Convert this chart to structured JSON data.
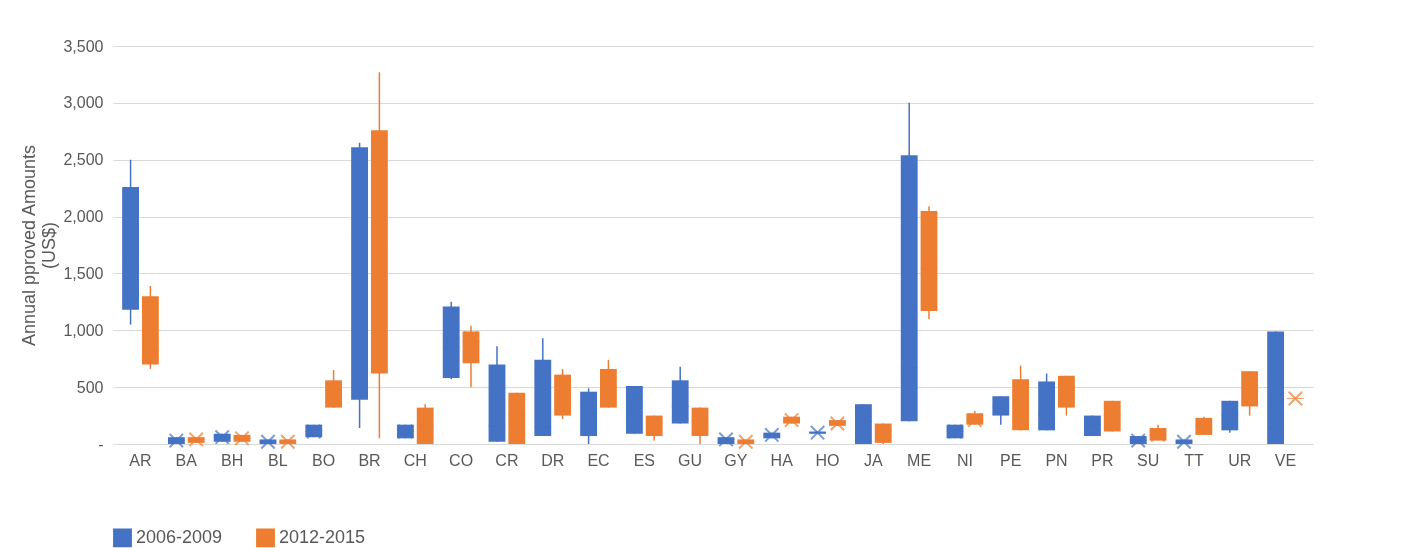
{
  "chart_data": {
    "type": "box",
    "ylabel": "Annual pproved Amounts\n(US$)",
    "categories": [
      "AR",
      "BA",
      "BH",
      "BL",
      "BO",
      "BR",
      "CH",
      "CO",
      "CR",
      "DR",
      "EC",
      "ES",
      "GU",
      "GY",
      "HA",
      "HO",
      "JA",
      "ME",
      "NI",
      "PE",
      "PN",
      "PR",
      "SU",
      "TT",
      "UR",
      "VE"
    ],
    "ylim": [
      0,
      3500
    ],
    "yticks": [
      {
        "value": 0,
        "label": "-"
      },
      500,
      {
        "value": 1000,
        "label": "1,000"
      },
      {
        "value": 1500,
        "label": "1,500"
      },
      {
        "value": 2000,
        "label": "2,000"
      },
      {
        "value": 2500,
        "label": "2,500"
      },
      {
        "value": 3000,
        "label": "3,000"
      },
      {
        "value": 3500,
        "label": "3,500"
      }
    ],
    "grid": "y",
    "legend": "bottom",
    "marker": "cross",
    "series": [
      {
        "name": "2006-2009",
        "color": "#4472c4",
        "boxes": [
          {
            "low": 1050,
            "q1": 1180,
            "median": 1630,
            "q3": 2260,
            "high": 2500,
            "mean": 1680
          },
          {
            "low": 0,
            "q1": 0,
            "median": 30,
            "q3": 60,
            "high": 60,
            "mean": 30
          },
          {
            "low": 20,
            "q1": 20,
            "median": 60,
            "q3": 90,
            "high": 90,
            "mean": 60
          },
          {
            "low": 0,
            "q1": 0,
            "median": 20,
            "q3": 40,
            "high": 40,
            "mean": 20
          },
          {
            "low": 60,
            "q1": 60,
            "median": 110,
            "q3": 170,
            "high": 170,
            "mean": 110
          },
          {
            "low": 140,
            "q1": 390,
            "median": 1830,
            "q3": 2610,
            "high": 2650,
            "mean": 1600
          },
          {
            "low": 50,
            "q1": 50,
            "median": 110,
            "q3": 170,
            "high": 170,
            "mean": 110
          },
          {
            "low": 570,
            "q1": 580,
            "median": 850,
            "q3": 1210,
            "high": 1250,
            "mean": 870
          },
          {
            "low": 20,
            "q1": 20,
            "median": 160,
            "q3": 700,
            "high": 860,
            "mean": 300
          },
          {
            "low": 70,
            "q1": 70,
            "median": 150,
            "q3": 740,
            "high": 930,
            "mean": 320
          },
          {
            "low": 0,
            "q1": 70,
            "median": 340,
            "q3": 460,
            "high": 490,
            "mean": 340
          },
          {
            "low": 90,
            "q1": 90,
            "median": 320,
            "q3": 510,
            "high": 510,
            "mean": 320
          },
          {
            "low": 180,
            "q1": 180,
            "median": 330,
            "q3": 560,
            "high": 680,
            "mean": 340
          },
          {
            "low": 0,
            "q1": 0,
            "median": 40,
            "q3": 60,
            "high": 60,
            "mean": 40
          },
          {
            "low": 50,
            "q1": 50,
            "median": 80,
            "q3": 100,
            "high": 100,
            "mean": 80
          },
          {
            "low": 90,
            "q1": 90,
            "median": 100,
            "q3": 110,
            "high": 110,
            "mean": 100
          },
          {
            "low": 0,
            "q1": 0,
            "median": 200,
            "q3": 350,
            "high": 350,
            "mean": 200
          },
          {
            "low": 200,
            "q1": 200,
            "median": 670,
            "q3": 2540,
            "high": 3000,
            "mean": 1130
          },
          {
            "low": 50,
            "q1": 50,
            "median": 110,
            "q3": 170,
            "high": 170,
            "mean": 110
          },
          {
            "low": 170,
            "q1": 250,
            "median": 330,
            "q3": 420,
            "high": 420,
            "mean": 330
          },
          {
            "low": 120,
            "q1": 120,
            "median": 250,
            "q3": 550,
            "high": 620,
            "mean": 320
          },
          {
            "low": 70,
            "q1": 70,
            "median": 170,
            "q3": 250,
            "high": 250,
            "mean": 170
          },
          {
            "low": 0,
            "q1": 0,
            "median": 30,
            "q3": 70,
            "high": 70,
            "mean": 30
          },
          {
            "low": 0,
            "q1": 0,
            "median": 20,
            "q3": 40,
            "high": 40,
            "mean": 20
          },
          {
            "low": 100,
            "q1": 120,
            "median": 260,
            "q3": 380,
            "high": 380,
            "mean": 250
          },
          {
            "low": 0,
            "q1": 0,
            "median": 140,
            "q3": 990,
            "high": 990,
            "mean": 390
          }
        ]
      },
      {
        "name": "2012-2015",
        "color": "#ed7d31",
        "boxes": [
          {
            "low": 660,
            "q1": 700,
            "median": 820,
            "q3": 1300,
            "high": 1390,
            "mean": 960
          },
          {
            "low": 10,
            "q1": 10,
            "median": 40,
            "q3": 60,
            "high": 60,
            "mean": 40
          },
          {
            "low": 20,
            "q1": 20,
            "median": 50,
            "q3": 80,
            "high": 80,
            "mean": 50
          },
          {
            "low": 0,
            "q1": 0,
            "median": 20,
            "q3": 40,
            "high": 40,
            "mean": 20
          },
          {
            "low": 320,
            "q1": 320,
            "median": 470,
            "q3": 560,
            "high": 650,
            "mean": 420
          },
          {
            "low": 50,
            "q1": 620,
            "median": 1750,
            "q3": 2760,
            "high": 3270,
            "mean": 1750
          },
          {
            "low": 0,
            "q1": 0,
            "median": 160,
            "q3": 320,
            "high": 350,
            "mean": 140
          },
          {
            "low": 500,
            "q1": 710,
            "median": 900,
            "q3": 990,
            "high": 1040,
            "mean": 930
          },
          {
            "low": 0,
            "q1": 0,
            "median": 260,
            "q3": 450,
            "high": 450,
            "mean": 250
          },
          {
            "low": 220,
            "q1": 250,
            "median": 420,
            "q3": 610,
            "high": 660,
            "mean": 420
          },
          {
            "low": 320,
            "q1": 320,
            "median": 500,
            "q3": 660,
            "high": 740,
            "mean": 490
          },
          {
            "low": 30,
            "q1": 70,
            "median": 180,
            "q3": 250,
            "high": 250,
            "mean": 180
          },
          {
            "low": 0,
            "q1": 70,
            "median": 200,
            "q3": 320,
            "high": 320,
            "mean": 200
          },
          {
            "low": 0,
            "q1": 0,
            "median": 20,
            "q3": 40,
            "high": 40,
            "mean": 20
          },
          {
            "low": 180,
            "q1": 180,
            "median": 210,
            "q3": 240,
            "high": 240,
            "mean": 210
          },
          {
            "low": 160,
            "q1": 160,
            "median": 180,
            "q3": 210,
            "high": 210,
            "mean": 180
          },
          {
            "low": 0,
            "q1": 10,
            "median": 110,
            "q3": 180,
            "high": 180,
            "mean": 110
          },
          {
            "low": 1100,
            "q1": 1170,
            "median": 1540,
            "q3": 2050,
            "high": 2090,
            "mean": 1610
          },
          {
            "low": 170,
            "q1": 170,
            "median": 210,
            "q3": 270,
            "high": 290,
            "mean": 210
          },
          {
            "low": 120,
            "q1": 120,
            "median": 430,
            "q3": 570,
            "high": 690,
            "mean": 300
          },
          {
            "low": 250,
            "q1": 320,
            "median": 500,
            "q3": 600,
            "high": 600,
            "mean": 490
          },
          {
            "low": 110,
            "q1": 110,
            "median": 250,
            "q3": 380,
            "high": 380,
            "mean": 230
          },
          {
            "low": 30,
            "q1": 30,
            "median": 80,
            "q3": 140,
            "high": 170,
            "mean": 80
          },
          {
            "low": 80,
            "q1": 80,
            "median": 160,
            "q3": 230,
            "high": 240,
            "mean": 160
          },
          {
            "low": 250,
            "q1": 330,
            "median": 480,
            "q3": 640,
            "high": 640,
            "mean": 470
          },
          {
            "low": 400,
            "q1": 400,
            "median": 400,
            "q3": 400,
            "high": 400,
            "mean": 400
          }
        ]
      }
    ]
  }
}
